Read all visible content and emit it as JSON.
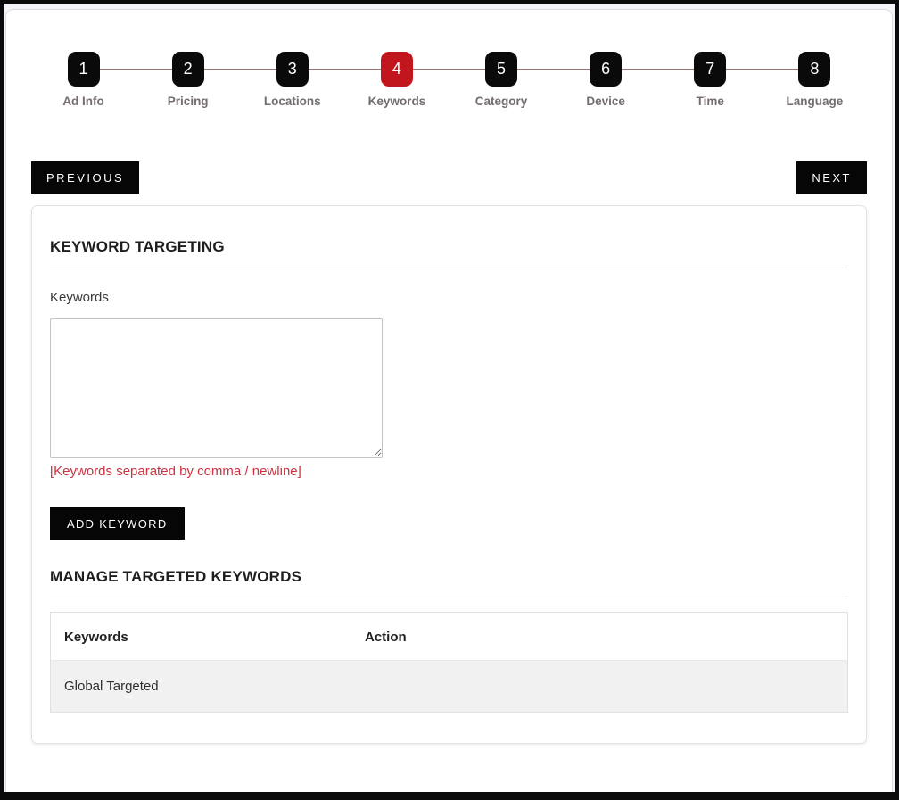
{
  "stepper": {
    "connector_color": "#8f7875",
    "inactive_color": "#0a0a0a",
    "active_color": "#c2161e",
    "active_step": 4,
    "steps": [
      {
        "number": "1",
        "label": "Ad Info"
      },
      {
        "number": "2",
        "label": "Pricing"
      },
      {
        "number": "3",
        "label": "Locations"
      },
      {
        "number": "4",
        "label": "Keywords"
      },
      {
        "number": "5",
        "label": "Category"
      },
      {
        "number": "6",
        "label": "Device"
      },
      {
        "number": "7",
        "label": "Time"
      },
      {
        "number": "8",
        "label": "Language"
      }
    ]
  },
  "nav": {
    "previous_label": "PREVIOUS",
    "next_label": "NEXT"
  },
  "card": {
    "title": "KEYWORD TARGETING",
    "keywords_label": "Keywords",
    "keywords_value": "",
    "hint": "[Keywords separated by comma / newline]",
    "hint_color": "#ca3340",
    "add_button_label": "ADD KEYWORD",
    "manage_title": "MANAGE TARGETED KEYWORDS",
    "table": {
      "headers": [
        "Keywords",
        "Action"
      ],
      "rows": [
        {
          "keywords": "Global Targeted",
          "action": ""
        }
      ]
    }
  }
}
